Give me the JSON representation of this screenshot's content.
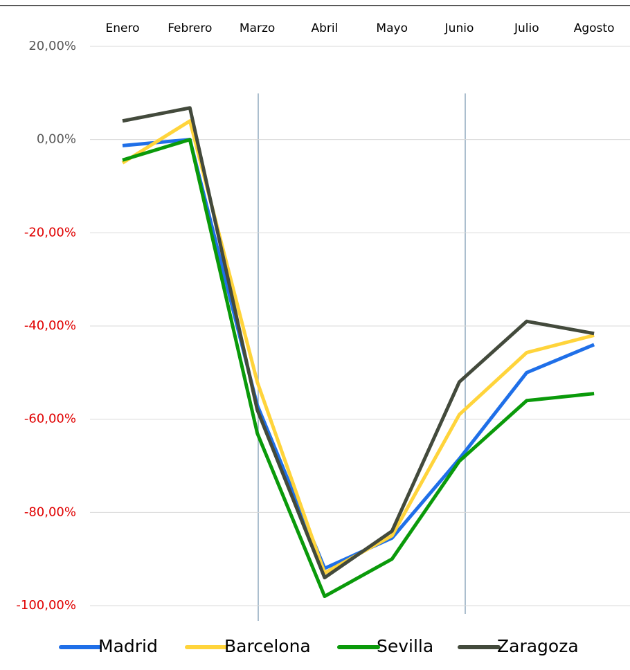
{
  "chart_data": {
    "type": "line",
    "categories": [
      "Enero",
      "Febrero",
      "Marzo",
      "Abril",
      "Mayo",
      "Junio",
      "Julio",
      "Agosto"
    ],
    "series": [
      {
        "name": "Madrid",
        "color": "#1f6fe8",
        "values": [
          -1.3,
          0,
          -57,
          -92,
          -85.5,
          -68.5,
          -50,
          -44
        ]
      },
      {
        "name": "Barcelona",
        "color": "#ffd43b",
        "values": [
          -5,
          4,
          -52,
          -93,
          -85,
          -59,
          -45.7,
          -42
        ]
      },
      {
        "name": "Sevilla",
        "color": "#0a9a0a",
        "values": [
          -4.4,
          0,
          -63,
          -98,
          -90,
          -69,
          -56,
          -54.5
        ]
      },
      {
        "name": "Zaragoza",
        "color": "#434a3c",
        "values": [
          4,
          6.8,
          -58,
          -94,
          -84,
          -52,
          -39,
          -41.6
        ]
      }
    ],
    "ylim": [
      -100,
      20
    ],
    "yticks": [
      {
        "value": 20,
        "label": "20,00%"
      },
      {
        "value": 0,
        "label": "0,00%"
      },
      {
        "value": -20,
        "label": "-20,00%"
      },
      {
        "value": -40,
        "label": "-40,00%"
      },
      {
        "value": -60,
        "label": "-60,00%"
      },
      {
        "value": -80,
        "label": "-80,00%"
      },
      {
        "value": -100,
        "label": "-100,00%"
      }
    ],
    "grid": true,
    "tick_color": "#595959",
    "negative_tick_color": "#e00000",
    "legend": "bottom"
  }
}
